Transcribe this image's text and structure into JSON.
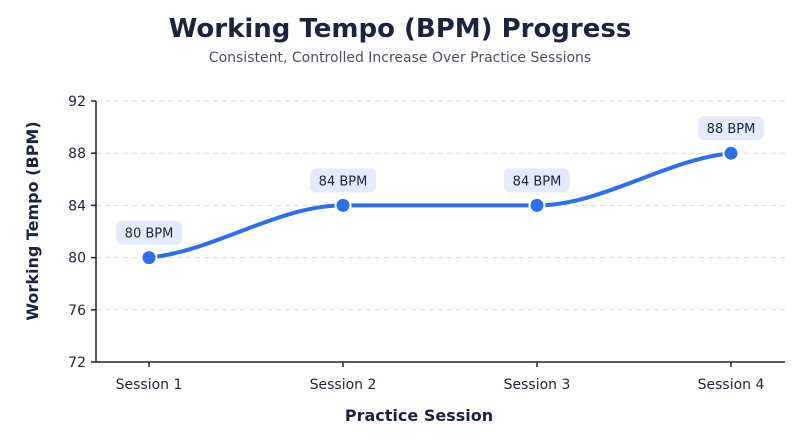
{
  "chart_data": {
    "type": "line",
    "title": "Working Tempo (BPM) Progress",
    "subtitle": "Consistent, Controlled Increase Over Practice Sessions",
    "xlabel": "Practice Session",
    "ylabel": "Working Tempo (BPM)",
    "categories": [
      "Session 1",
      "Session 2",
      "Session 3",
      "Session 4"
    ],
    "series": [
      {
        "values": [
          80,
          84,
          84,
          88
        ],
        "data_labels": [
          "80 BPM",
          "84 BPM",
          "84 BPM",
          "88 BPM"
        ]
      }
    ],
    "ylim": [
      72,
      92
    ],
    "yticks": [
      72,
      76,
      80,
      84,
      88,
      92
    ],
    "grid": true,
    "line_color": "#2f6fe4",
    "label_bg_color": "#e3ebfa",
    "text_color": "#1b2340"
  }
}
